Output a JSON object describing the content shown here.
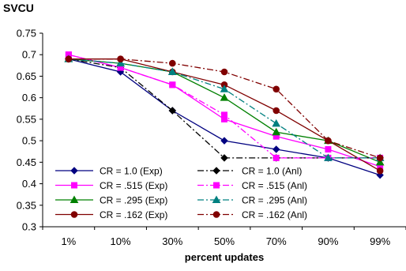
{
  "chart_data": {
    "type": "line",
    "title": "SVCU",
    "xlabel": "percent updates",
    "ylabel": "",
    "categories": [
      "1%",
      "10%",
      "30%",
      "50%",
      "70%",
      "90%",
      "99%"
    ],
    "ylim": [
      0.3,
      0.75
    ],
    "ytick_labels": [
      "0.75",
      "0.7",
      "0.65",
      "0.6",
      "0.55",
      "0.5",
      "0.45",
      "0.4",
      "0.35",
      "0.3"
    ],
    "grid": false,
    "legend_position": "bottom-left",
    "series": [
      {
        "name": "CR = 1.0 (Exp)",
        "color": "#000080",
        "dash": "solid",
        "marker": "diamond",
        "values": [
          0.69,
          0.66,
          0.57,
          0.5,
          0.48,
          0.46,
          0.42
        ]
      },
      {
        "name": "CR = .515 (Exp)",
        "color": "#ff00ff",
        "dash": "solid",
        "marker": "square",
        "values": [
          0.7,
          0.67,
          0.63,
          0.55,
          0.51,
          0.48,
          0.44
        ]
      },
      {
        "name": "CR = .295 (Exp)",
        "color": "#008000",
        "dash": "solid",
        "marker": "triangle",
        "values": [
          0.69,
          0.68,
          0.66,
          0.6,
          0.52,
          0.5,
          0.45
        ]
      },
      {
        "name": "CR = .162 (Exp)",
        "color": "#800000",
        "dash": "solid",
        "marker": "circle",
        "values": [
          0.69,
          0.69,
          0.66,
          0.63,
          0.57,
          0.5,
          0.43
        ]
      },
      {
        "name": "CR = 1.0 (Anl)",
        "color": "#000000",
        "dash": "dashdot",
        "marker": "diamond",
        "values": [
          0.69,
          0.67,
          0.57,
          0.46,
          0.46,
          0.46,
          0.46
        ]
      },
      {
        "name": "CR = .515 (Anl)",
        "color": "#ff00ff",
        "dash": "dashdot",
        "marker": "square",
        "values": [
          0.7,
          0.67,
          0.63,
          0.56,
          0.46,
          0.46,
          0.46
        ]
      },
      {
        "name": "CR = .295 (Anl)",
        "color": "#008080",
        "dash": "dashdot",
        "marker": "triangle",
        "values": [
          0.69,
          0.68,
          0.66,
          0.62,
          0.54,
          0.46,
          0.46
        ]
      },
      {
        "name": "CR = .162 (Anl)",
        "color": "#800000",
        "dash": "dashdot",
        "marker": "circle",
        "values": [
          0.69,
          0.69,
          0.68,
          0.66,
          0.62,
          0.5,
          0.46
        ]
      }
    ]
  }
}
